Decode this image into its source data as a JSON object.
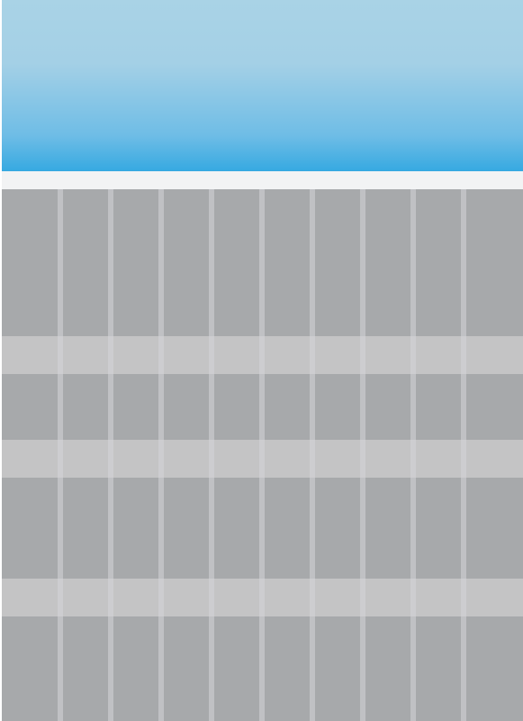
{
  "colors": {
    "header_top": "#a9d3e6",
    "header_bottom": "#36a9e1",
    "sub_bar": "#f2f3f4",
    "grid_background": "#a7a9ab",
    "grid_band": "#c4c4c5",
    "grid_gutter": "#d6d6d8"
  }
}
